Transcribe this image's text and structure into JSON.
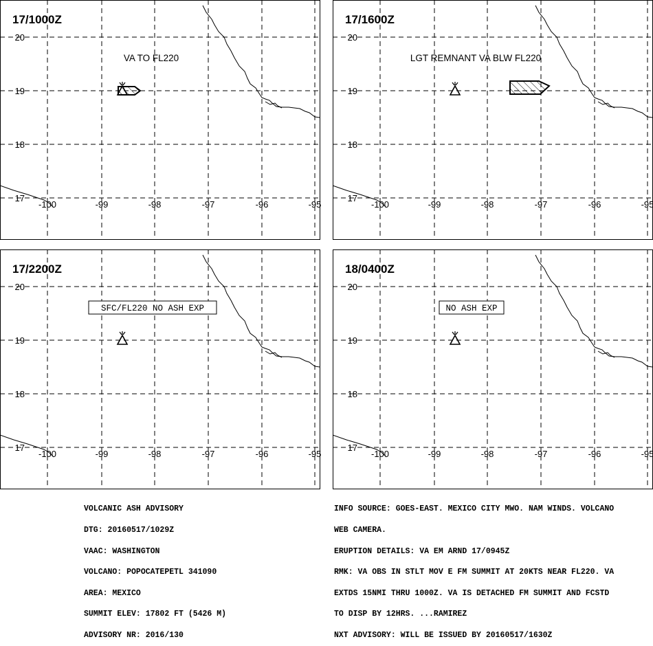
{
  "panels": [
    {
      "time_label": "17/1000Z",
      "annotation": "VA TO FL220",
      "boxed": false,
      "ash_cloud": "small",
      "volcano_marker": true
    },
    {
      "time_label": "17/1600Z",
      "annotation": "LGT REMNANT VA BLW FL220",
      "boxed": false,
      "ash_cloud": "detached",
      "volcano_marker": true
    },
    {
      "time_label": "17/2200Z",
      "annotation": "SFC/FL220 NO ASH EXP",
      "boxed": true,
      "ash_cloud": "none",
      "volcano_marker": true
    },
    {
      "time_label": "18/0400Z",
      "annotation": "NO ASH EXP",
      "boxed": true,
      "ash_cloud": "none",
      "volcano_marker": true
    }
  ],
  "axes": {
    "lat_labels": [
      "20",
      "19",
      "18",
      "17"
    ],
    "lon_labels": [
      "-100",
      "-99",
      "-98",
      "-97",
      "-96",
      "-95"
    ]
  },
  "advisory_left": [
    "VOLCANIC ASH ADVISORY",
    "DTG: 20160517/1029Z",
    "VAAC: WASHINGTON",
    "VOLCANO: POPOCATEPETL 341090",
    "AREA: MEXICO",
    "SUMMIT ELEV: 17802 FT (5426 M)",
    "ADVISORY NR: 2016/130"
  ],
  "advisory_right": [
    "INFO SOURCE: GOES-EAST. MEXICO CITY MWO. NAM WINDS. VOLCANO",
    "WEB CAMERA.",
    "ERUPTION DETAILS: VA EM ARND 17/0945Z",
    "RMK: VA OBS IN STLT MOV E FM SUMMIT AT 20KTS NEAR FL220. VA",
    "EXTDS 15NMI THRU 1000Z. VA IS DETACHED FM SUMMIT AND FCSTD",
    "TO DISP BY 12HRS. ...RAMIREZ",
    "NXT ADVISORY: WILL BE ISSUED BY 20160517/1630Z"
  ]
}
